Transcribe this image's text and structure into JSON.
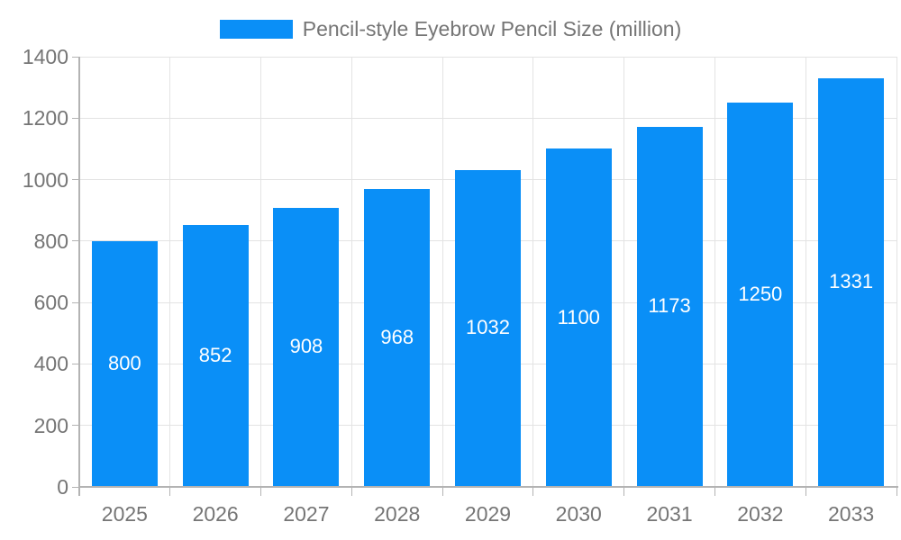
{
  "chart_data": {
    "type": "bar",
    "title": "Pencil-style Eyebrow Pencil Size (million)",
    "legend": {
      "position": "top",
      "entries": [
        "Pencil-style Eyebrow Pencil Size (million)"
      ]
    },
    "categories": [
      "2025",
      "2026",
      "2027",
      "2028",
      "2029",
      "2030",
      "2031",
      "2032",
      "2033"
    ],
    "series": [
      {
        "name": "Pencil-style Eyebrow Pencil Size (million)",
        "values": [
          800,
          852,
          908,
          968,
          1032,
          1100,
          1173,
          1250,
          1331
        ]
      }
    ],
    "data_labels": [
      "800",
      "852",
      "908",
      "968",
      "1032",
      "1100",
      "1173",
      "1250",
      "1331"
    ],
    "xlabel": "",
    "ylabel": "",
    "ylim": [
      0,
      1400
    ],
    "ytick_step": 200,
    "ytick_labels": [
      "0",
      "200",
      "400",
      "600",
      "800",
      "1000",
      "1200",
      "1400"
    ],
    "grid": true,
    "colors": {
      "bar": "#0a8ff7",
      "grid": "#e3e3e3",
      "axis": "#b3b3b3",
      "text": "#757575",
      "data_label": "#ffffff",
      "background": "#ffffff"
    }
  }
}
